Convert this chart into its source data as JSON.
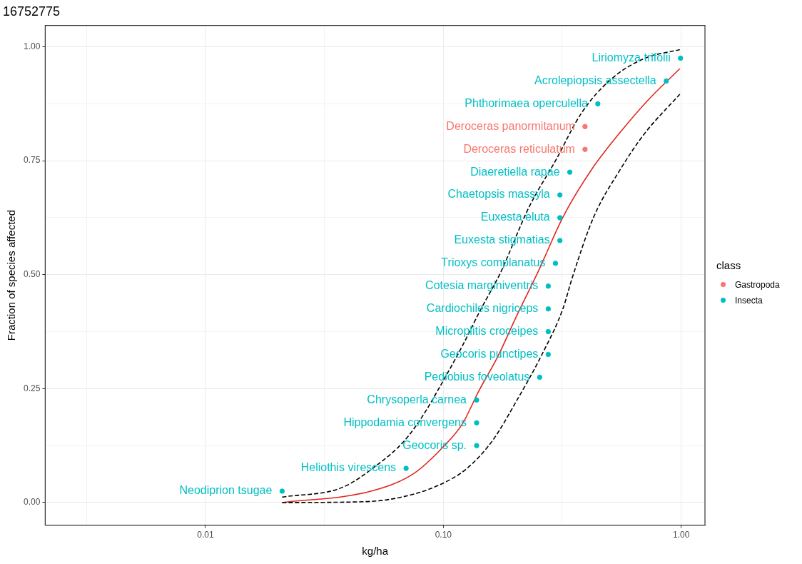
{
  "chart_data": {
    "type": "scatter",
    "title": "16752775",
    "xlabel": "kg/ha",
    "ylabel": "Fraction of species affected",
    "legend_title": "class",
    "legend": "right",
    "log": "x",
    "grid": true,
    "marker": "circle",
    "xlim": [
      0.00212,
      1.258
    ],
    "ylim": [
      -0.0496,
      1.047
    ],
    "xticks": [
      {
        "value": 0.00316,
        "label": null
      },
      0.01,
      {
        "value": 0.0316,
        "label": null
      },
      {
        "value": 0.1,
        "label": "0.10"
      },
      {
        "value": 0.316,
        "label": null
      },
      {
        "value": 1,
        "label": "1.00"
      }
    ],
    "yticks": [
      {
        "value": 0,
        "label": "0.00"
      },
      {
        "value": 0.125,
        "label": null
      },
      {
        "value": 0.25,
        "label": "0.25"
      },
      {
        "value": 0.375,
        "label": null
      },
      {
        "value": 0.5,
        "label": "0.50"
      },
      {
        "value": 0.625,
        "label": null
      },
      {
        "value": 0.75,
        "label": "0.75"
      },
      {
        "value": 0.875,
        "label": null
      },
      {
        "value": 1,
        "label": "1.00"
      }
    ],
    "series": [
      {
        "name": "Gastropoda",
        "color": "#f8766d",
        "x": [
          0.394,
          0.394
        ],
        "values": [
          0.775,
          0.825
        ]
      },
      {
        "name": "Insecta",
        "color": "#00bfc4",
        "x": [
          0.021,
          0.0697,
          0.138,
          0.138,
          0.138,
          0.254,
          0.276,
          0.276,
          0.276,
          0.276,
          0.296,
          0.309,
          0.309,
          0.309,
          0.34,
          0.446,
          0.865,
          0.993
        ],
        "values": [
          0.025,
          0.075,
          0.125,
          0.175,
          0.225,
          0.275,
          0.325,
          0.375,
          0.425,
          0.475,
          0.525,
          0.575,
          0.625,
          0.675,
          0.725,
          0.875,
          0.925,
          0.975
        ]
      },
      {
        "type": "line",
        "marker": "none",
        "color": "#e0261f",
        "line_style": "solid",
        "x": [
          0.021,
          0.0496,
          0.0752,
          0.0993,
          0.12,
          0.141,
          0.17,
          0.203,
          0.251,
          0.318,
          0.419,
          0.553,
          0.731,
          0.986
        ],
        "values": [
          0.0,
          0.025,
          0.064,
          0.121,
          0.172,
          0.245,
          0.322,
          0.409,
          0.508,
          0.626,
          0.73,
          0.812,
          0.885,
          0.952
        ]
      },
      {
        "type": "line",
        "marker": "none",
        "color": "#000000",
        "line_style": "dashed",
        "x": [
          0.021,
          0.0375,
          0.0531,
          0.0687,
          0.0823,
          0.0993,
          0.12,
          0.144,
          0.173,
          0.229,
          0.296,
          0.38,
          0.502,
          0.697,
          0.986
        ],
        "values": [
          0.012,
          0.033,
          0.084,
          0.136,
          0.192,
          0.265,
          0.343,
          0.425,
          0.502,
          0.648,
          0.75,
          0.854,
          0.927,
          0.974,
          0.994
        ]
      },
      {
        "type": "line",
        "marker": "none",
        "color": "#000000",
        "line_style": "dashed",
        "x": [
          0.021,
          0.0472,
          0.0668,
          0.0946,
          0.125,
          0.161,
          0.203,
          0.258,
          0.318,
          0.348,
          0.428,
          0.553,
          0.697,
          0.986
        ],
        "values": [
          0.0,
          0.002,
          0.012,
          0.037,
          0.074,
          0.136,
          0.223,
          0.322,
          0.425,
          0.493,
          0.626,
          0.73,
          0.808,
          0.896
        ]
      }
    ],
    "annotations": [
      {
        "text": "Neodiprion tsugae",
        "x": 0.021,
        "y": 0.025
      },
      {
        "text": "Heliothis virescens",
        "x": 0.0697,
        "y": 0.075
      },
      {
        "text": "Geocoris sp.",
        "x": 0.138,
        "y": 0.125
      },
      {
        "text": "Hippodamia convergens",
        "x": 0.138,
        "y": 0.175
      },
      {
        "text": "Chrysoperla carnea",
        "x": 0.138,
        "y": 0.225
      },
      {
        "text": "Pediobius foveolatus",
        "x": 0.254,
        "y": 0.275
      },
      {
        "text": "Geocoris punctipes",
        "x": 0.276,
        "y": 0.325
      },
      {
        "text": "Microplitis croceipes",
        "x": 0.276,
        "y": 0.375
      },
      {
        "text": "Cardiochiles nigriceps",
        "x": 0.276,
        "y": 0.425
      },
      {
        "text": "Cotesia marginiventris",
        "x": 0.276,
        "y": 0.475
      },
      {
        "text": "Trioxys complanatus",
        "x": 0.296,
        "y": 0.525
      },
      {
        "text": "Euxesta stigmatias",
        "x": 0.309,
        "y": 0.575
      },
      {
        "text": "Euxesta eluta",
        "x": 0.309,
        "y": 0.625
      },
      {
        "text": "Chaetopsis massyla",
        "x": 0.309,
        "y": 0.675
      },
      {
        "text": "Diaeretiella rapae",
        "x": 0.34,
        "y": 0.725
      },
      {
        "text": "Deroceras reticulatum",
        "x": 0.394,
        "y": 0.775
      },
      {
        "text": "Deroceras panormitanum",
        "x": 0.394,
        "y": 0.825
      },
      {
        "text": "Phthorimaea operculella",
        "x": 0.446,
        "y": 0.875
      },
      {
        "text": "Acrolepiopsis assectella",
        "x": 0.865,
        "y": 0.925
      },
      {
        "text": "Liriomyza trifolii",
        "x": 0.993,
        "y": 0.975
      }
    ]
  }
}
